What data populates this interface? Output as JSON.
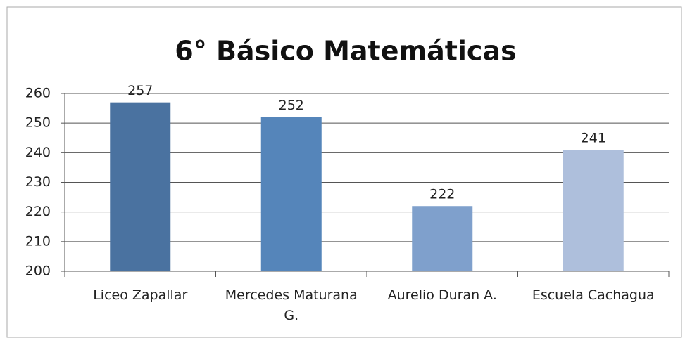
{
  "chart_data": {
    "type": "bar",
    "title": "6° Básico Matemáticas",
    "categories": [
      "Liceo Zapallar",
      "Mercedes Maturana G.",
      "Aurelio Duran A.",
      "Escuela Cachagua"
    ],
    "values": [
      257,
      252,
      222,
      241
    ],
    "colors": [
      "#4a72a0",
      "#5585ba",
      "#7fa0cc",
      "#aebfdc"
    ],
    "ylim": [
      200,
      260
    ],
    "yticks": [
      200,
      210,
      220,
      230,
      240,
      250,
      260
    ],
    "grid": true
  }
}
